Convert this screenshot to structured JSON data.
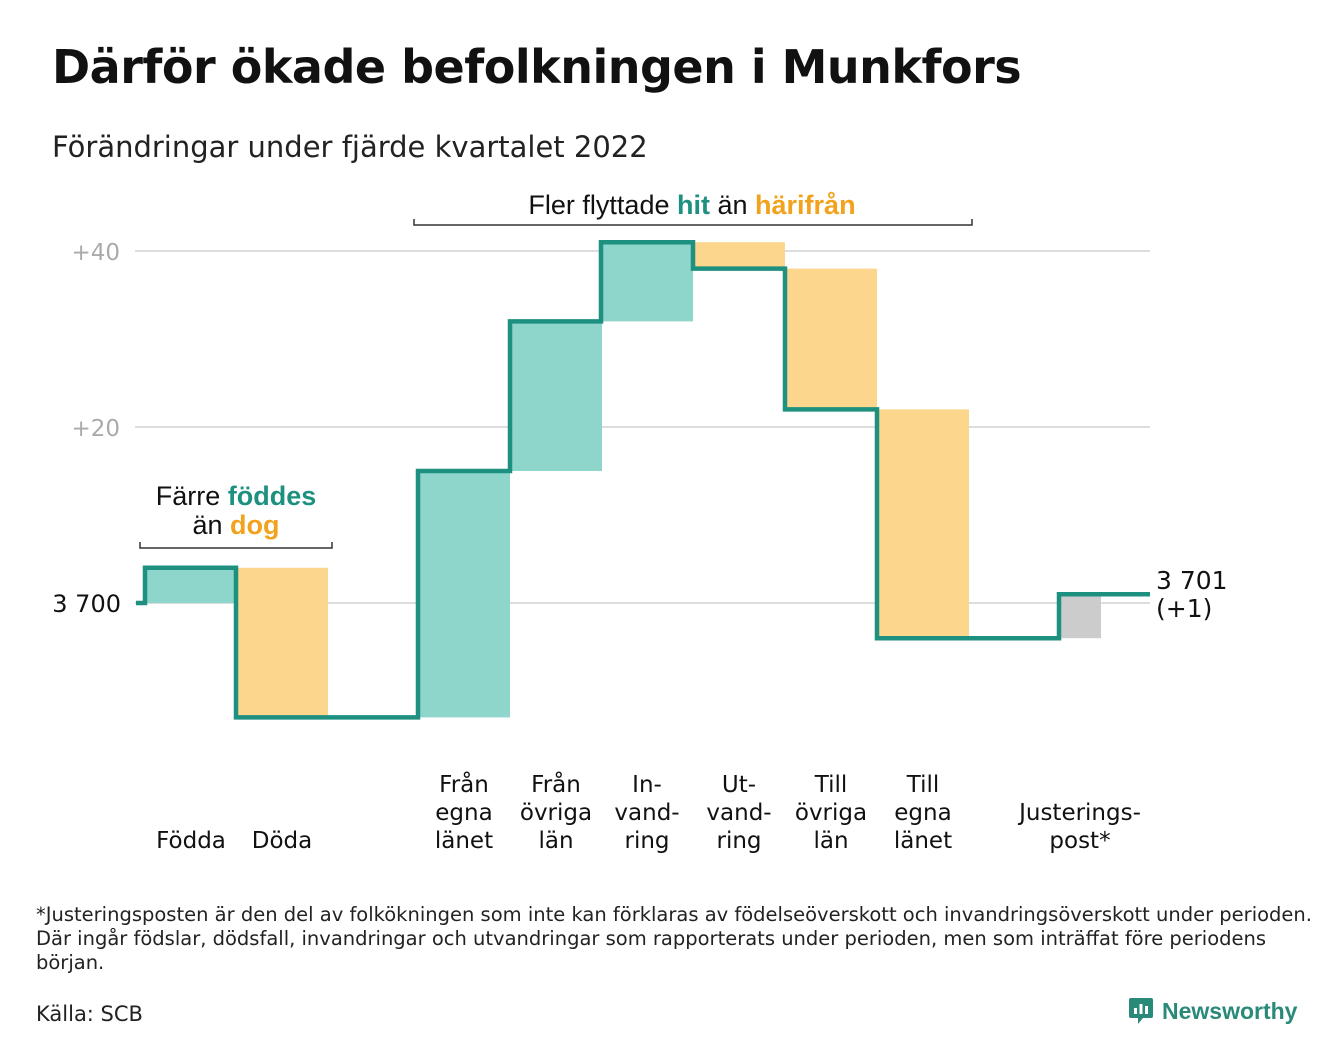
{
  "title": "Därför ökade befolkningen i Munkfors",
  "subtitle": "Förändringar under fjärde kvartalet 2022",
  "chart_data": {
    "type": "waterfall",
    "baseline": 3700,
    "baseline_label": "3 700",
    "ylim": [
      -13,
      41
    ],
    "yticks": [
      {
        "value": 40,
        "label": "+40"
      },
      {
        "value": 20,
        "label": "+20"
      }
    ],
    "grid": true,
    "colors": {
      "increase": "#8ed5cc",
      "decrease": "#fbd68c",
      "adjustment": "#cccccc",
      "line": "#1e9080",
      "teal_text": "#1e9080",
      "orange_text": "#f2a21c",
      "grid": "#dddddd",
      "tick_text": "#aaaaaa"
    },
    "steps": [
      {
        "category": "Födda",
        "label_lines": [
          "Födda"
        ],
        "value": 4,
        "kind": "increase",
        "group": 1
      },
      {
        "category": "Döda",
        "label_lines": [
          "Döda"
        ],
        "value": -17,
        "kind": "decrease",
        "group": 1
      },
      {
        "category": "Från egna länet",
        "label_lines": [
          "Från",
          "egna",
          "länet"
        ],
        "value": 28,
        "kind": "increase",
        "group": 2
      },
      {
        "category": "Från övriga län",
        "label_lines": [
          "Från",
          "övriga",
          "län"
        ],
        "value": 17,
        "kind": "increase",
        "group": 2
      },
      {
        "category": "In-vandring",
        "label_lines": [
          "In-",
          "vand-",
          "ring"
        ],
        "value": 9,
        "kind": "increase",
        "group": 2
      },
      {
        "category": "Ut-vandring",
        "label_lines": [
          "Ut-",
          "vand-",
          "ring"
        ],
        "value": -3,
        "kind": "decrease",
        "group": 2
      },
      {
        "category": "Till övriga län",
        "label_lines": [
          "Till",
          "övriga",
          "län"
        ],
        "value": -16,
        "kind": "decrease",
        "group": 2
      },
      {
        "category": "Till egna länet",
        "label_lines": [
          "Till",
          "egna",
          "länet"
        ],
        "value": -26,
        "kind": "decrease",
        "group": 2
      },
      {
        "category": "Justeringspost*",
        "label_lines": [
          "Justerings-",
          "post*"
        ],
        "value": 5,
        "kind": "adjustment",
        "group": 3
      }
    ],
    "end_label_lines": [
      "3 701",
      "(+1)"
    ],
    "annotations": [
      {
        "group": 1,
        "line1": [
          {
            "text": "Färre ",
            "style": "plain"
          },
          {
            "text": "föddes",
            "style": "teal"
          }
        ],
        "line2": [
          {
            "text": "än ",
            "style": "plain"
          },
          {
            "text": "dog",
            "style": "orange"
          }
        ]
      },
      {
        "group": 2,
        "line1": [
          {
            "text": "Fler flyttade ",
            "style": "plain"
          },
          {
            "text": "hit",
            "style": "teal"
          },
          {
            "text": " än ",
            "style": "plain"
          },
          {
            "text": "härifrån",
            "style": "orange"
          }
        ]
      }
    ]
  },
  "footnote": "*Justeringsposten är den del av folkökningen som inte kan förklaras av födelseöverskott och invandringsöverskott under perioden. Där ingår födslar, dödsfall, invandringar och utvandringar som rapporterats under perioden, men som inträffat före periodens början.",
  "source": "Källa: SCB",
  "brand": {
    "name": "Newsworthy",
    "icon": "newsworthy-logo-icon"
  }
}
